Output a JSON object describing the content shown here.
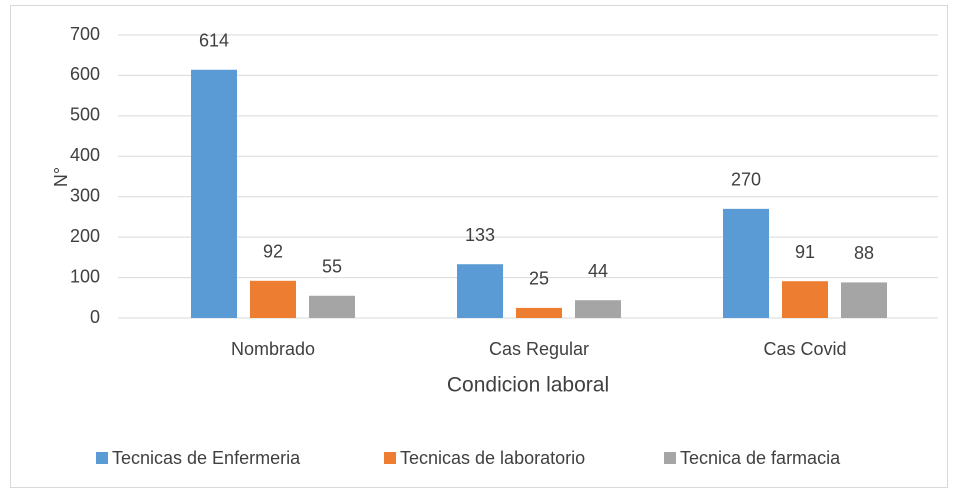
{
  "chart_data": {
    "type": "bar",
    "x_label": "Condicion laboral",
    "y_label": "N°",
    "categories": [
      "Nombrado",
      "Cas Regular",
      "Cas Covid"
    ],
    "series": [
      {
        "name": "Tecnicas de Enfermeria",
        "color": "#5b9bd5",
        "values": [
          614,
          133,
          270
        ]
      },
      {
        "name": "Tecnicas de laboratorio",
        "color": "#ed7d31",
        "values": [
          92,
          25,
          91
        ]
      },
      {
        "name": "Tecnica de farmacia",
        "color": "#a5a5a5",
        "values": [
          55,
          44,
          88
        ]
      }
    ],
    "ylim": [
      0,
      700
    ],
    "yticks": [
      0,
      100,
      200,
      300,
      400,
      500,
      600,
      700
    ],
    "grid": true,
    "legend": "bottom"
  }
}
